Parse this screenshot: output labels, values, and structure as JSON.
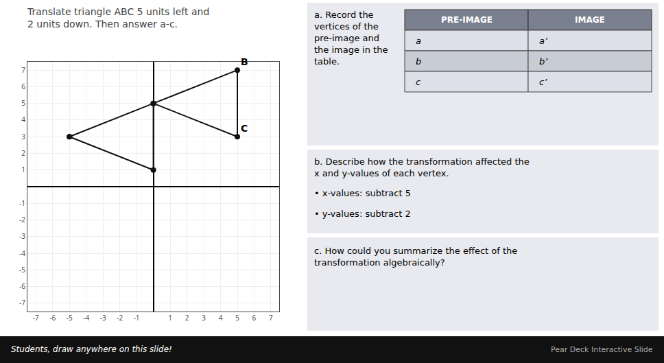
{
  "chart_data": {
    "type": "line",
    "title": "Translate triangle ABC 5 units left and\n2 units down. Then answer a-c.",
    "series": [
      {
        "x": [
          0,
          5,
          5,
          0
        ],
        "values": [
          5,
          7,
          3,
          5
        ],
        "color": "#111111",
        "marker": "circle"
      },
      {
        "x": [
          -5,
          0,
          0,
          -5
        ],
        "values": [
          3,
          5,
          1,
          3
        ],
        "color": "#111111",
        "marker": "circle"
      }
    ],
    "xlim": [
      -7.5,
      7.5
    ],
    "ylim": [
      -7.5,
      7.5
    ],
    "xticks": [
      -7,
      -6,
      -5,
      -4,
      -3,
      -2,
      -1,
      1,
      2,
      3,
      4,
      5,
      6,
      7
    ],
    "yticks": [
      -7,
      -6,
      -5,
      -4,
      -3,
      -2,
      -1,
      1,
      2,
      3,
      4,
      5,
      6,
      7
    ],
    "grid": true,
    "annotations": [
      {
        "text": "B",
        "x": 5,
        "y": 7
      },
      {
        "text": "C",
        "x": 5,
        "y": 3
      }
    ]
  },
  "text_panel": {
    "part_a": "a. Record the\nvertices of the\npre-image and\nthe image in the\ntable.",
    "table_headers": [
      "PRE-IMAGE",
      "IMAGE"
    ],
    "table_rows": [
      [
        "a",
        "a’"
      ],
      [
        "b",
        "b’"
      ],
      [
        "c",
        "c’"
      ]
    ],
    "part_b": [
      "b. Describe how the transformation affected the",
      "x and y-values of each vertex.",
      "• x-values: subtract 5",
      "• y-values: subtract 2"
    ],
    "part_c": [
      "c. How could you summarize the effect of the",
      "transformation algebraically?"
    ],
    "footer_left": "Students, draw anywhere on this slide!",
    "footer_right": "Pear Deck Interactive Slide"
  }
}
